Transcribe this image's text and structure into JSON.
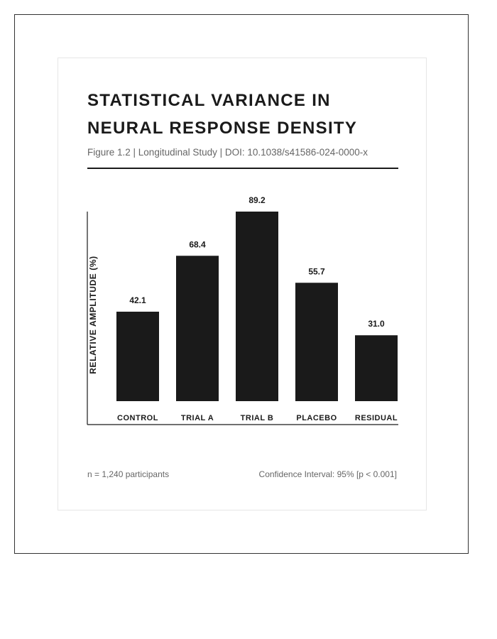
{
  "chart_data": {
    "type": "bar",
    "title_lines": [
      "STATISTICAL VARIANCE IN",
      "NEURAL RESPONSE DENSITY"
    ],
    "subtitle": "Figure 1.2 | Longitudinal Study | DOI: 10.1038/s41586-024-0000-x",
    "ylabel": "RELATIVE AMPLITUDE (%)",
    "xlabel": "",
    "categories": [
      "CONTROL",
      "TRIAL A",
      "TRIAL B",
      "PLACEBO",
      "RESIDUAL"
    ],
    "values": [
      42.1,
      68.4,
      89.2,
      55.7,
      31.0
    ],
    "value_labels": [
      "42.1",
      "68.4",
      "89.2",
      "55.7",
      "31.0"
    ],
    "ylim": [
      0,
      89.2
    ],
    "grid": false,
    "legend": "none",
    "bar_color": "#1a1a1a"
  },
  "footer": {
    "sample_note": "n = 1,240 participants",
    "confidence_note": "Confidence Interval: 95% [p < 0.001]"
  },
  "colors": {
    "text": "#1a1a1a",
    "muted": "#666666",
    "frame": "#333333",
    "card_border": "#e6e6e6"
  }
}
